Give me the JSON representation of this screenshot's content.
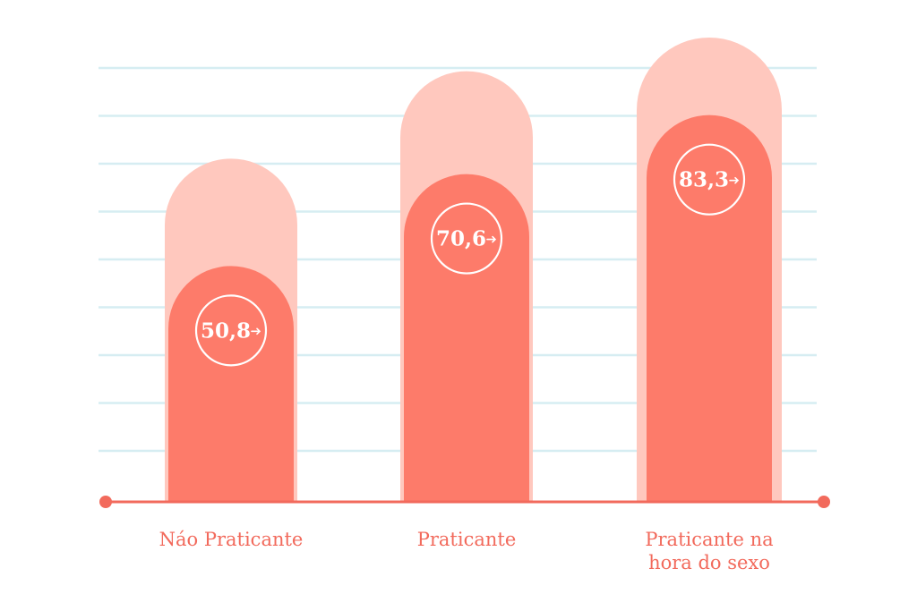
{
  "chart_data": {
    "type": "bar",
    "categories": [
      "Náo Praticante",
      "Praticante",
      "Praticante na hora do sexo"
    ],
    "category_lines": [
      [
        "Náo Praticante"
      ],
      [
        "Praticante"
      ],
      [
        "Praticante na",
        "hora do sexo"
      ]
    ],
    "values": [
      50.8,
      70.6,
      83.3
    ],
    "value_labels": [
      "50,8",
      "70,6",
      "83,3"
    ],
    "ylim": [
      0,
      100
    ],
    "grid": true,
    "colors": {
      "bar": "#fd7b6a",
      "bar_background": "#ffc8be",
      "axis": "#f26a5c",
      "grid": "#d6edf2",
      "label": "#f26a5c",
      "badge": "#ffffff"
    }
  }
}
